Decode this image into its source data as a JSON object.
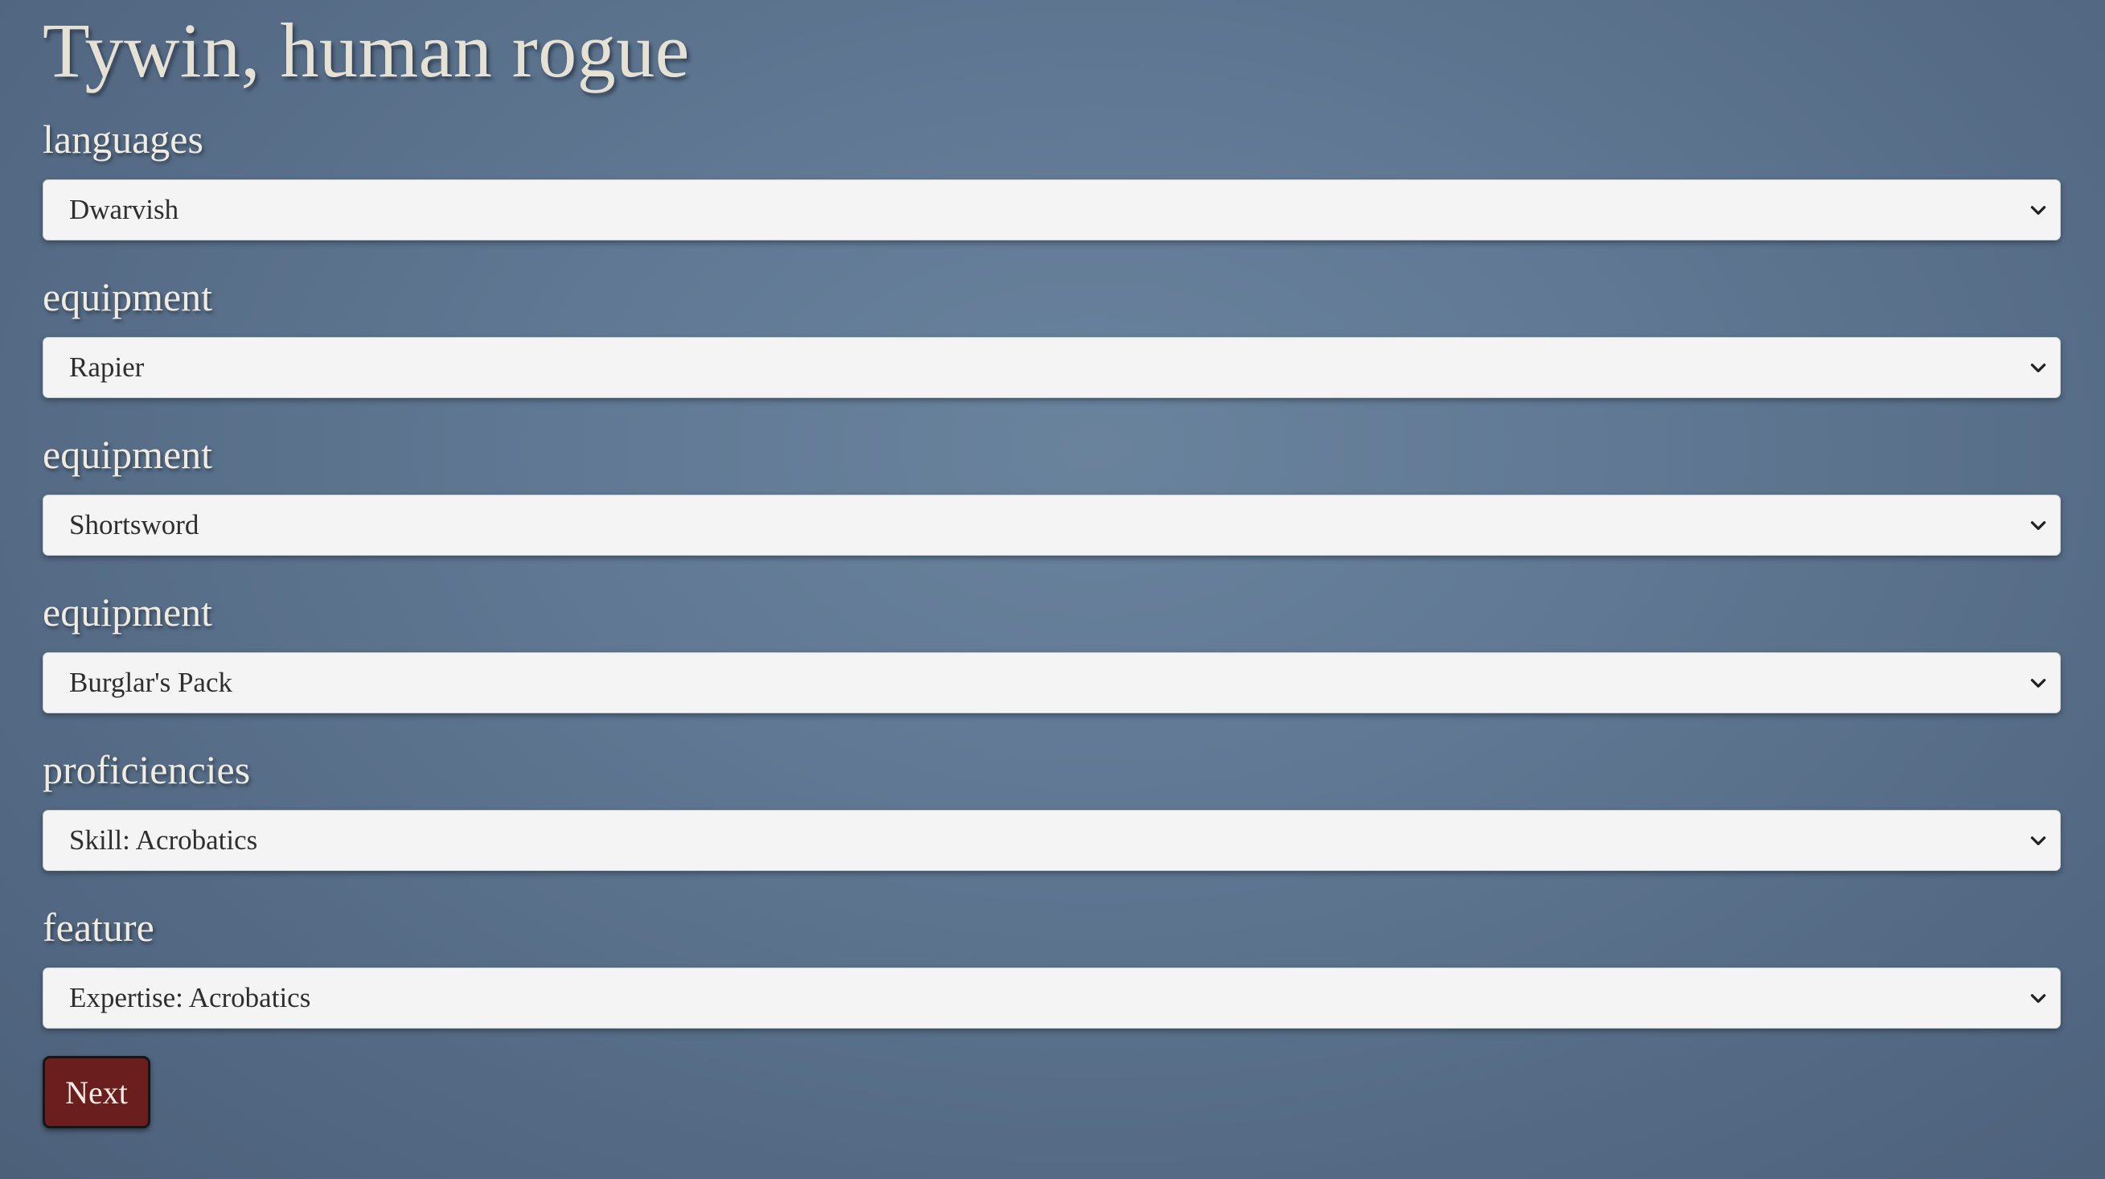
{
  "header": {
    "title": "Tywin, human rogue"
  },
  "fields": [
    {
      "label": "languages",
      "selected": "Dwarvish"
    },
    {
      "label": "equipment",
      "selected": "Rapier"
    },
    {
      "label": "equipment",
      "selected": "Shortsword"
    },
    {
      "label": "equipment",
      "selected": "Burglar's Pack"
    },
    {
      "label": "proficiencies",
      "selected": "Skill: Acrobatics"
    },
    {
      "label": "feature",
      "selected": "Expertise: Acrobatics"
    }
  ],
  "actions": {
    "next_label": "Next"
  },
  "colors": {
    "background": "#607893",
    "next_button": "#6a1e1e",
    "select_background": "#f4f4f4"
  },
  "icons": {
    "select_indicator": "chevron-down-icon"
  }
}
